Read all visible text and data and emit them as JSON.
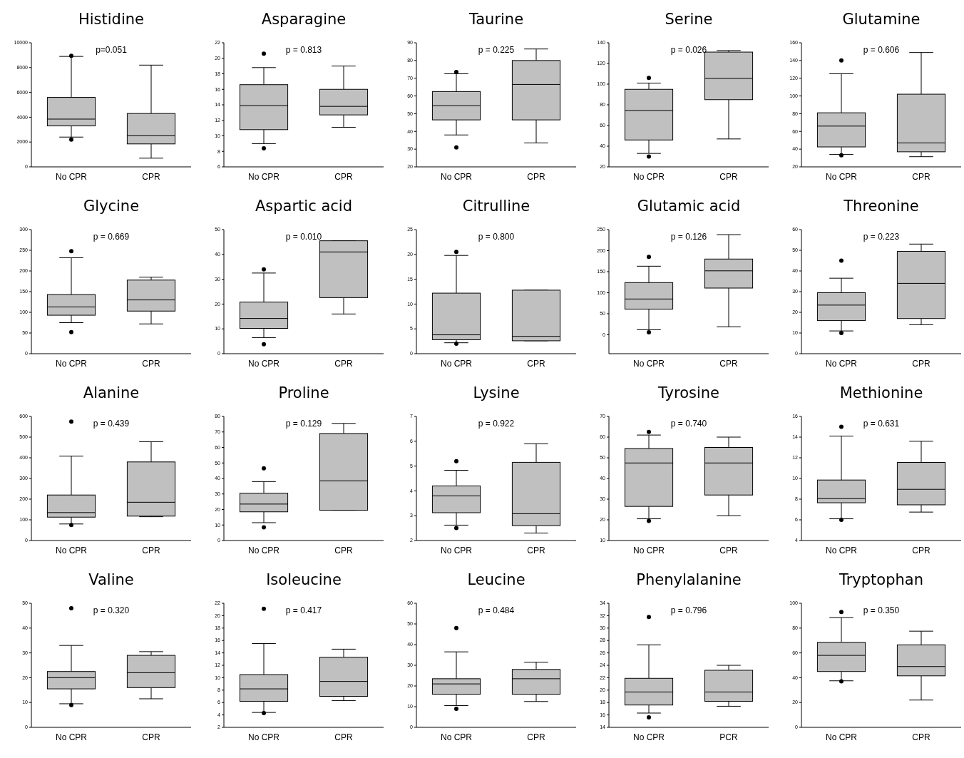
{
  "chart_data": [
    {
      "type": "box",
      "title": "Histidine",
      "annotations": [
        "p=0.051"
      ],
      "categories": [
        "No CPR",
        "CPR"
      ],
      "ylim": [
        0,
        10000
      ],
      "yticks": [
        0,
        2000,
        4000,
        6000,
        8000,
        10000
      ],
      "color": "#c0c0c0",
      "boxes": [
        {
          "low": 2400,
          "q1": 3300,
          "median": 3850,
          "q3": 5600,
          "high": 8900,
          "outliers": [
            2200,
            8950
          ]
        },
        {
          "low": 700,
          "q1": 1850,
          "median": 2500,
          "q3": 4300,
          "high": 8200
        }
      ]
    },
    {
      "type": "box",
      "title": "Asparagine",
      "annotations": [
        "p = 0.813"
      ],
      "categories": [
        "No CPR",
        "CPR"
      ],
      "ylim": [
        6,
        22
      ],
      "yticks": [
        6,
        8,
        10,
        12,
        14,
        16,
        18,
        20,
        22
      ],
      "color": "#c0c0c0",
      "boxes": [
        {
          "low": 9,
          "q1": 10.8,
          "median": 13.9,
          "q3": 16.6,
          "high": 18.8,
          "outliers": [
            8.4,
            20.6
          ]
        },
        {
          "low": 11.1,
          "q1": 12.7,
          "median": 13.8,
          "q3": 16,
          "high": 19
        }
      ]
    },
    {
      "type": "box",
      "title": "Taurine",
      "annotations": [
        "p = 0.225"
      ],
      "categories": [
        "No CPR",
        "CPR"
      ],
      "ylim": [
        20,
        90
      ],
      "yticks": [
        20,
        30,
        40,
        50,
        60,
        70,
        80,
        90
      ],
      "color": "#c0c0c0",
      "boxes": [
        {
          "low": 38,
          "q1": 46.5,
          "median": 54.5,
          "q3": 62.5,
          "high": 72.5,
          "outliers": [
            31,
            73.5
          ]
        },
        {
          "low": 33.5,
          "q1": 46.5,
          "median": 66.5,
          "q3": 80,
          "high": 86.5
        }
      ]
    },
    {
      "type": "box",
      "title": "Serine",
      "annotations": [
        "p = 0.026"
      ],
      "categories": [
        "No CPR",
        "CPR"
      ],
      "ylim": [
        20,
        140
      ],
      "yticks": [
        20,
        40,
        60,
        80,
        100,
        120,
        140
      ],
      "color": "#c0c0c0",
      "boxes": [
        {
          "low": 33,
          "q1": 46,
          "median": 74.5,
          "q3": 95,
          "high": 101,
          "outliers": [
            30,
            106
          ]
        },
        {
          "low": 47,
          "q1": 85,
          "median": 105.5,
          "q3": 131,
          "high": 132.5
        }
      ]
    },
    {
      "type": "box",
      "title": "Glutamine",
      "annotations": [
        "p = 0.606"
      ],
      "categories": [
        "No CPR",
        "CPR"
      ],
      "ylim": [
        20,
        160
      ],
      "yticks": [
        20,
        40,
        60,
        80,
        100,
        120,
        140,
        160
      ],
      "color": "#c0c0c0",
      "boxes": [
        {
          "low": 34,
          "q1": 42.5,
          "median": 66,
          "q3": 81,
          "high": 125,
          "outliers": [
            33,
            140
          ]
        },
        {
          "low": 31.5,
          "q1": 37,
          "median": 47,
          "q3": 102,
          "high": 149
        }
      ]
    },
    {
      "type": "box",
      "title": "Glycine",
      "annotations": [
        "p = 0.669"
      ],
      "categories": [
        "No CPR",
        "CPR"
      ],
      "ylim": [
        0,
        300
      ],
      "yticks": [
        0,
        50,
        100,
        150,
        200,
        250,
        300
      ],
      "color": "#c0c0c0",
      "boxes": [
        {
          "low": 75,
          "q1": 93,
          "median": 113,
          "q3": 143,
          "high": 232,
          "outliers": [
            52,
            248
          ]
        },
        {
          "low": 72,
          "q1": 103,
          "median": 130,
          "q3": 178,
          "high": 185
        }
      ]
    },
    {
      "type": "box",
      "title": "Aspartic acid",
      "annotations": [
        "p = 0.010"
      ],
      "categories": [
        "No CPR",
        "CPR"
      ],
      "ylim": [
        0,
        50
      ],
      "yticks": [
        0,
        10,
        20,
        30,
        40,
        50
      ],
      "color": "#c0c0c0",
      "boxes": [
        {
          "low": 6.5,
          "q1": 10.2,
          "median": 14.2,
          "q3": 20.8,
          "high": 32.5,
          "outliers": [
            3.8,
            34
          ]
        },
        {
          "low": 16,
          "q1": 22.6,
          "median": 41,
          "q3": 45.5,
          "high": 45.5
        }
      ]
    },
    {
      "type": "box",
      "title": "Citrulline",
      "annotations": [
        "p = 0.800"
      ],
      "categories": [
        "No CPR",
        "CPR"
      ],
      "ylim": [
        0,
        25
      ],
      "yticks": [
        0,
        5,
        10,
        15,
        20,
        25
      ],
      "color": "#c0c0c0",
      "boxes": [
        {
          "low": 2.2,
          "q1": 2.8,
          "median": 3.8,
          "q3": 12.2,
          "high": 19.8,
          "outliers": [
            2,
            20.5
          ]
        },
        {
          "low": 2.6,
          "q1": 2.6,
          "median": 3.5,
          "q3": 12.8,
          "high": 12.8
        }
      ]
    },
    {
      "type": "box",
      "title": "Glutamic acid",
      "annotations": [
        "p = 0.126"
      ],
      "categories": [
        "No CPR",
        "CPR"
      ],
      "ylim": [
        -45,
        250
      ],
      "yticks": [
        0,
        50,
        100,
        150,
        200,
        250
      ],
      "color": "#c0c0c0",
      "boxes": [
        {
          "low": 12,
          "q1": 61,
          "median": 85,
          "q3": 124,
          "high": 163,
          "outliers": [
            6,
            185
          ]
        },
        {
          "low": 19,
          "q1": 111,
          "median": 152,
          "q3": 180,
          "high": 238
        }
      ]
    },
    {
      "type": "box",
      "title": "Threonine",
      "annotations": [
        "p = 0.223"
      ],
      "categories": [
        "No CPR",
        "CPR"
      ],
      "ylim": [
        0,
        60
      ],
      "yticks": [
        0,
        10,
        20,
        30,
        40,
        50,
        60
      ],
      "color": "#c0c0c0",
      "boxes": [
        {
          "low": 11,
          "q1": 16,
          "median": 23.5,
          "q3": 29.5,
          "high": 36.5,
          "outliers": [
            10,
            45
          ]
        },
        {
          "low": 14,
          "q1": 17,
          "median": 34,
          "q3": 49.5,
          "high": 53
        }
      ]
    },
    {
      "type": "box",
      "title": "Alanine",
      "annotations": [
        "p = 0.439"
      ],
      "categories": [
        "No CPR",
        "CPR"
      ],
      "ylim": [
        0,
        600
      ],
      "yticks": [
        0,
        100,
        200,
        300,
        400,
        500,
        600
      ],
      "color": "#c0c0c0",
      "boxes": [
        {
          "low": 80,
          "q1": 113,
          "median": 135,
          "q3": 220,
          "high": 408,
          "outliers": [
            75,
            575
          ]
        },
        {
          "low": 115,
          "q1": 118,
          "median": 185,
          "q3": 380,
          "high": 478
        }
      ]
    },
    {
      "type": "box",
      "title": "Proline",
      "annotations": [
        "p = 0.129"
      ],
      "categories": [
        "No CPR",
        "CPR"
      ],
      "ylim": [
        0,
        80
      ],
      "yticks": [
        0,
        10,
        20,
        30,
        40,
        50,
        60,
        70,
        80
      ],
      "color": "#c0c0c0",
      "boxes": [
        {
          "low": 11.5,
          "q1": 18.5,
          "median": 23.5,
          "q3": 30.5,
          "high": 38,
          "outliers": [
            8.5,
            46.5
          ]
        },
        {
          "low": 19.5,
          "q1": 19.5,
          "median": 38.5,
          "q3": 69,
          "high": 75.5
        }
      ]
    },
    {
      "type": "box",
      "title": "Lysine",
      "annotations": [
        "p = 0.922"
      ],
      "categories": [
        "No CPR",
        "CPR"
      ],
      "ylim": [
        2,
        7
      ],
      "yticks": [
        2,
        3,
        4,
        5,
        6,
        7
      ],
      "color": "#c0c0c0",
      "boxes": [
        {
          "low": 2.62,
          "q1": 3.12,
          "median": 3.8,
          "q3": 4.2,
          "high": 4.83,
          "outliers": [
            2.5,
            5.2
          ]
        },
        {
          "low": 2.3,
          "q1": 2.6,
          "median": 3.08,
          "q3": 5.15,
          "high": 5.9
        }
      ]
    },
    {
      "type": "box",
      "title": "Tyrosine",
      "annotations": [
        "p = 0.740"
      ],
      "categories": [
        "No CPR",
        "CPR"
      ],
      "ylim": [
        10,
        70
      ],
      "yticks": [
        10,
        20,
        30,
        40,
        50,
        60,
        70
      ],
      "color": "#c0c0c0",
      "boxes": [
        {
          "low": 20.5,
          "q1": 26.5,
          "median": 47.5,
          "q3": 54.5,
          "high": 61,
          "outliers": [
            19.5,
            62.5
          ]
        },
        {
          "low": 22,
          "q1": 32,
          "median": 47.5,
          "q3": 55,
          "high": 60
        }
      ]
    },
    {
      "type": "box",
      "title": "Methionine",
      "annotations": [
        "p = 0.631"
      ],
      "categories": [
        "No CPR",
        "CPR"
      ],
      "ylim": [
        4,
        16
      ],
      "yticks": [
        4,
        6,
        8,
        10,
        12,
        14,
        16
      ],
      "color": "#c0c0c0",
      "boxes": [
        {
          "low": 6.1,
          "q1": 7.65,
          "median": 8.05,
          "q3": 9.85,
          "high": 14.1,
          "outliers": [
            6,
            15
          ]
        },
        {
          "low": 6.75,
          "q1": 7.45,
          "median": 8.95,
          "q3": 11.55,
          "high": 13.6
        }
      ]
    },
    {
      "type": "box",
      "title": "Valine",
      "annotations": [
        "p = 0.320"
      ],
      "categories": [
        "No CPR",
        "CPR"
      ],
      "ylim": [
        0,
        50
      ],
      "yticks": [
        0,
        10,
        20,
        30,
        40,
        50
      ],
      "color": "#c0c0c0",
      "boxes": [
        {
          "low": 9.5,
          "q1": 15.5,
          "median": 20,
          "q3": 22.5,
          "high": 33,
          "outliers": [
            9,
            48
          ]
        },
        {
          "low": 11.5,
          "q1": 16,
          "median": 22,
          "q3": 29,
          "high": 30.5
        }
      ]
    },
    {
      "type": "box",
      "title": "Isoleucine",
      "annotations": [
        "p = 0.417"
      ],
      "categories": [
        "No CPR",
        "CPR"
      ],
      "ylim": [
        2,
        22
      ],
      "yticks": [
        2,
        4,
        6,
        8,
        10,
        12,
        14,
        16,
        18,
        20,
        22
      ],
      "color": "#c0c0c0",
      "boxes": [
        {
          "low": 4.4,
          "q1": 6.2,
          "median": 8.2,
          "q3": 10.5,
          "high": 15.5,
          "outliers": [
            4.3,
            21.1
          ]
        },
        {
          "low": 6.3,
          "q1": 7,
          "median": 9.4,
          "q3": 13.3,
          "high": 14.6
        }
      ]
    },
    {
      "type": "box",
      "title": "Leucine",
      "annotations": [
        "p = 0.484"
      ],
      "categories": [
        "No CPR",
        "CPR"
      ],
      "ylim": [
        0,
        60
      ],
      "yticks": [
        0,
        10,
        20,
        30,
        40,
        50,
        60
      ],
      "color": "#c0c0c0",
      "boxes": [
        {
          "low": 10.5,
          "q1": 16,
          "median": 21,
          "q3": 23.5,
          "high": 36.5,
          "outliers": [
            9,
            48
          ]
        },
        {
          "low": 12.5,
          "q1": 16,
          "median": 23.5,
          "q3": 28,
          "high": 31.5
        }
      ]
    },
    {
      "type": "box",
      "title": "Phenylalanine",
      "annotations": [
        "p = 0.796"
      ],
      "categories": [
        "No CPR",
        "PCR"
      ],
      "ylim": [
        14,
        34
      ],
      "yticks": [
        14,
        16,
        18,
        20,
        22,
        24,
        26,
        28,
        30,
        32,
        34
      ],
      "color": "#c0c0c0",
      "boxes": [
        {
          "low": 16.3,
          "q1": 17.6,
          "median": 19.7,
          "q3": 21.9,
          "high": 27.3,
          "outliers": [
            15.6,
            31.8
          ]
        },
        {
          "low": 17.4,
          "q1": 18.2,
          "median": 19.7,
          "q3": 23.2,
          "high": 24
        }
      ]
    },
    {
      "type": "box",
      "title": "Tryptophan",
      "annotations": [
        "p = 0.350"
      ],
      "categories": [
        "No CPR",
        "CPR"
      ],
      "ylim": [
        0,
        100
      ],
      "yticks": [
        0,
        20,
        40,
        60,
        80,
        100
      ],
      "color": "#c0c0c0",
      "boxes": [
        {
          "low": 37.5,
          "q1": 45,
          "median": 58,
          "q3": 68.5,
          "high": 88.5,
          "outliers": [
            37,
            93
          ]
        },
        {
          "low": 22,
          "q1": 41.5,
          "median": 49,
          "q3": 66.5,
          "high": 77.5
        }
      ]
    }
  ]
}
